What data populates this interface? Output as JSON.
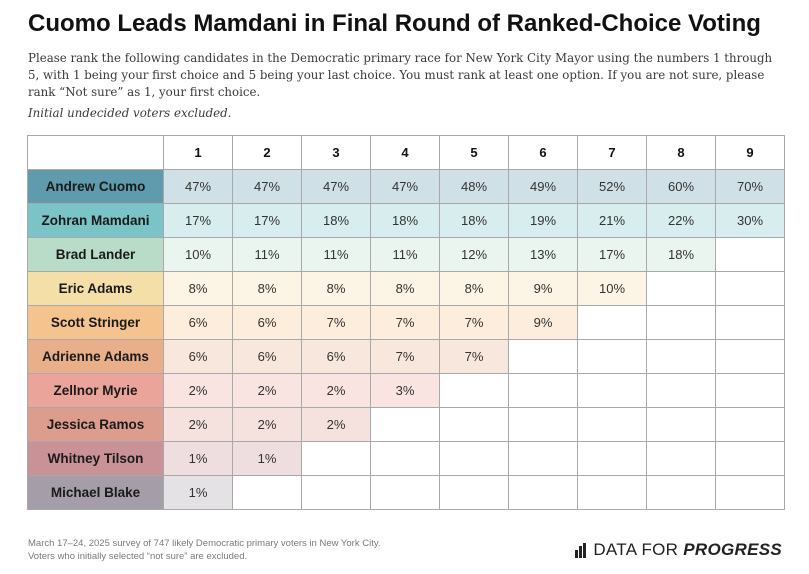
{
  "header": {
    "title": "Cuomo Leads Mamdani in Final Round of Ranked-Choice Voting",
    "subtitle": "Please rank the following candidates in the Democratic primary race for New York City Mayor using the numbers 1 through 5, with 1 being your first choice and 5 being your last choice. You must rank at least one option. If you are not sure, please rank “Not sure” as 1, your first choice.",
    "note": "Initial undecided voters excluded."
  },
  "chart_data": {
    "type": "table",
    "columns": [
      "1",
      "2",
      "3",
      "4",
      "5",
      "6",
      "7",
      "8",
      "9"
    ],
    "rows": [
      {
        "name": "Andrew Cuomo",
        "color": "#5f9aad",
        "values": [
          "47%",
          "47%",
          "47%",
          "47%",
          "48%",
          "49%",
          "52%",
          "60%",
          "70%"
        ]
      },
      {
        "name": "Zohran Mamdani",
        "color": "#7ac3c6",
        "values": [
          "17%",
          "17%",
          "18%",
          "18%",
          "18%",
          "19%",
          "21%",
          "22%",
          "30%"
        ]
      },
      {
        "name": "Brad Lander",
        "color": "#b8dcc8",
        "values": [
          "10%",
          "11%",
          "11%",
          "11%",
          "12%",
          "13%",
          "17%",
          "18%",
          ""
        ]
      },
      {
        "name": "Eric Adams",
        "color": "#f4dfa8",
        "values": [
          "8%",
          "8%",
          "8%",
          "8%",
          "8%",
          "9%",
          "10%",
          "",
          ""
        ]
      },
      {
        "name": "Scott Stringer",
        "color": "#f4c38e",
        "values": [
          "6%",
          "6%",
          "7%",
          "7%",
          "7%",
          "9%",
          "",
          "",
          ""
        ]
      },
      {
        "name": "Adrienne Adams",
        "color": "#e9ae8a",
        "values": [
          "6%",
          "6%",
          "6%",
          "7%",
          "7%",
          "",
          "",
          "",
          ""
        ]
      },
      {
        "name": "Zellnor Myrie",
        "color": "#eaa49a",
        "values": [
          "2%",
          "2%",
          "2%",
          "3%",
          "",
          "",
          "",
          "",
          ""
        ]
      },
      {
        "name": "Jessica Ramos",
        "color": "#dc9c8e",
        "values": [
          "2%",
          "2%",
          "2%",
          "",
          "",
          "",
          "",
          "",
          ""
        ]
      },
      {
        "name": "Whitney Tilson",
        "color": "#c99297",
        "values": [
          "1%",
          "1%",
          "",
          "",
          "",
          "",
          "",
          "",
          ""
        ]
      },
      {
        "name": "Michael Blake",
        "color": "#a59ea9",
        "values": [
          "1%",
          "",
          "",
          "",
          "",
          "",
          "",
          "",
          ""
        ]
      }
    ]
  },
  "footer": {
    "source": "March 17–24, 2025 survey of 747 likely Democratic primary voters in New York City. Voters who initially selected “not sure” are excluded.",
    "logo_text": "DATA FOR",
    "logo_strong": "PROGRESS"
  }
}
